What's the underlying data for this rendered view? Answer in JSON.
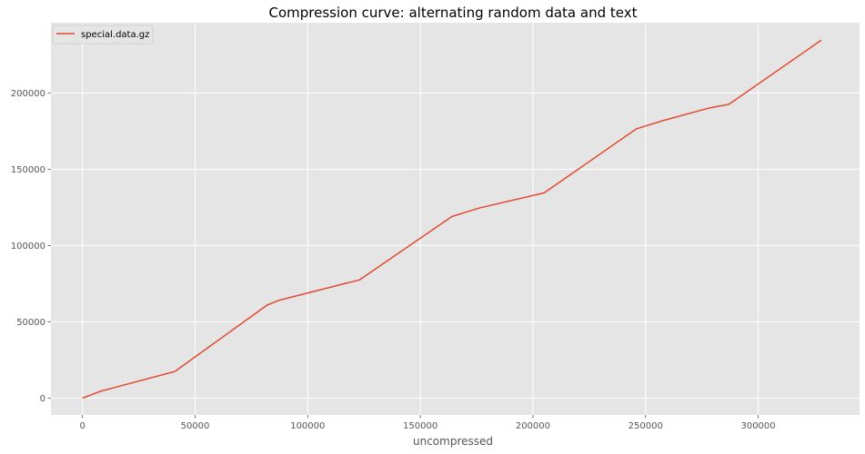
{
  "chart_data": {
    "type": "line",
    "title": "Compression curve: alternating random data and text",
    "xlabel": "uncompressed",
    "ylabel": "",
    "xlim": [
      -14000,
      345000
    ],
    "ylim": [
      -11000,
      246000
    ],
    "x_ticks": [
      0,
      50000,
      100000,
      150000,
      200000,
      250000,
      300000
    ],
    "y_ticks": [
      0,
      50000,
      100000,
      150000,
      200000
    ],
    "grid": true,
    "legend_position": "upper-left",
    "colors": {
      "background": "#E5E5E5",
      "grid": "#FFFFFF",
      "line": "#E24A33"
    },
    "series": [
      {
        "name": "special.data.gz",
        "x": [
          0,
          8000,
          41000,
          82000,
          87000,
          123000,
          164000,
          176000,
          205000,
          246000,
          258000,
          278000,
          287000,
          328000
        ],
        "y": [
          0,
          4500,
          17500,
          61000,
          64000,
          77500,
          119000,
          124500,
          134500,
          176500,
          182000,
          190000,
          192500,
          234500
        ]
      }
    ]
  }
}
